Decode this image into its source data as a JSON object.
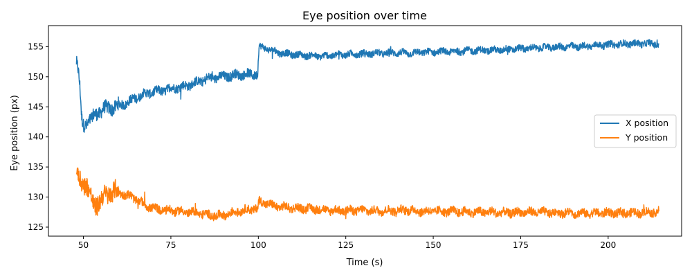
{
  "chart_data": {
    "type": "line",
    "title": "Eye position over time",
    "xlabel": "Time (s)",
    "ylabel": "Eye position (px)",
    "xlim": [
      40,
      221
    ],
    "ylim": [
      123.5,
      158.5
    ],
    "xticks": [
      50,
      75,
      100,
      125,
      150,
      175,
      200
    ],
    "yticks": [
      125,
      130,
      135,
      140,
      145,
      150,
      155
    ],
    "grid": false,
    "legend_position": "center-right",
    "series": [
      {
        "name": "X position",
        "color": "#1f77b4",
        "x": [
          48.0,
          48.5,
          49.0,
          49.5,
          50.0,
          51.0,
          52.0,
          53.0,
          54.0,
          55.0,
          56.0,
          58.0,
          60.0,
          62.0,
          64.0,
          66.0,
          68.0,
          70.0,
          72.0,
          74.0,
          76.0,
          78.0,
          80.0,
          82.0,
          84.0,
          86.0,
          88.0,
          90.0,
          92.0,
          94.0,
          96.0,
          98.0,
          99.8,
          100.2,
          102.0,
          104.0,
          106.0,
          108.0,
          110.0,
          112.0,
          115.0,
          118.0,
          120.0,
          122.0,
          125.0,
          128.0,
          130.0,
          133.0,
          136.0,
          140.0,
          143.0,
          145.0,
          148.0,
          150.0,
          153.0,
          156.0,
          160.0,
          163.0,
          166.0,
          170.0,
          173.0,
          176.0,
          180.0,
          184.0,
          188.0,
          192.0,
          196.0,
          200.0,
          203.0,
          206.0,
          209.0,
          212.0,
          214.5
        ],
        "y": [
          152.5,
          151.0,
          148.0,
          143.0,
          142.0,
          142.3,
          142.8,
          143.5,
          144.0,
          144.3,
          144.7,
          144.8,
          145.2,
          145.5,
          146.2,
          146.8,
          147.2,
          147.5,
          147.6,
          147.9,
          148.2,
          148.3,
          148.6,
          149.0,
          149.4,
          149.7,
          149.9,
          150.0,
          150.2,
          150.3,
          150.4,
          150.4,
          150.4,
          155.0,
          154.8,
          154.3,
          154.0,
          153.8,
          153.7,
          153.6,
          153.5,
          153.4,
          153.5,
          153.6,
          153.7,
          153.8,
          153.8,
          153.9,
          153.9,
          154.0,
          153.9,
          154.0,
          154.1,
          154.1,
          154.2,
          154.2,
          154.3,
          154.4,
          154.4,
          154.5,
          154.6,
          154.7,
          154.8,
          154.9,
          155.0,
          155.0,
          155.2,
          155.3,
          155.4,
          155.5,
          155.5,
          155.5,
          155.4
        ]
      },
      {
        "name": "Y position",
        "color": "#ff7f0e",
        "x": [
          48.0,
          48.5,
          49.0,
          49.5,
          50.0,
          51.0,
          52.0,
          53.0,
          54.0,
          55.0,
          56.0,
          58.0,
          60.0,
          62.0,
          64.0,
          66.0,
          68.0,
          70.0,
          72.0,
          74.0,
          76.0,
          78.0,
          80.0,
          82.0,
          84.0,
          86.0,
          88.0,
          90.0,
          92.0,
          94.0,
          96.0,
          98.0,
          99.8,
          100.2,
          102.0,
          104.0,
          106.0,
          108.0,
          110.0,
          112.0,
          115.0,
          118.0,
          120.0,
          122.0,
          125.0,
          128.0,
          130.0,
          133.0,
          136.0,
          140.0,
          143.0,
          145.0,
          148.0,
          150.0,
          153.0,
          156.0,
          160.0,
          163.0,
          166.0,
          170.0,
          173.0,
          176.0,
          180.0,
          184.0,
          188.0,
          192.0,
          196.0,
          200.0,
          203.0,
          206.0,
          209.0,
          212.0,
          214.5
        ],
        "y": [
          134.0,
          133.5,
          133.0,
          132.5,
          132.5,
          132.0,
          130.0,
          128.5,
          129.0,
          129.5,
          130.0,
          131.0,
          130.8,
          130.4,
          130.0,
          129.3,
          128.6,
          128.1,
          127.9,
          127.8,
          127.7,
          127.6,
          127.5,
          127.4,
          127.2,
          127.0,
          126.9,
          127.0,
          127.3,
          127.6,
          127.8,
          128.0,
          128.1,
          129.3,
          129.0,
          128.6,
          128.4,
          128.3,
          128.2,
          128.1,
          128.0,
          127.9,
          127.8,
          127.8,
          127.7,
          127.8,
          127.8,
          127.7,
          127.7,
          127.8,
          127.8,
          127.7,
          127.6,
          127.7,
          127.6,
          127.6,
          127.5,
          127.5,
          127.5,
          127.4,
          127.4,
          127.5,
          127.5,
          127.4,
          127.4,
          127.3,
          127.3,
          127.4,
          127.3,
          127.4,
          127.4,
          127.5,
          127.6
        ]
      }
    ]
  }
}
